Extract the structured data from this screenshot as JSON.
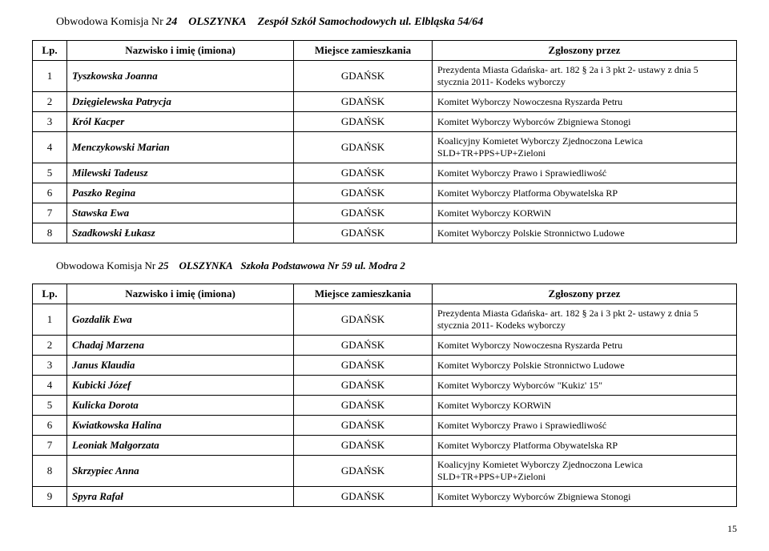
{
  "header1_prefix": "Obwodowa Komisja Nr ",
  "header1_num": "24",
  "header1_loc": "OLSZYNKA",
  "header1_place": "Zespół Szkół Samochodowych  ul. Elbląska 54/64",
  "header2_prefix": "Obwodowa Komisja Nr ",
  "header2_num": "25",
  "header2_loc": "OLSZYNKA",
  "header2_place": "Szkoła Podstawowa Nr 59   ul. Modra 2",
  "th_lp": "Lp.",
  "th_name": "Nazwisko i imię (imiona)",
  "th_loc": "Miejsce zamieszkania",
  "th_zgl": "Zgłoszony przez",
  "table1": {
    "rows": [
      {
        "lp": "1",
        "name": "Tyszkowska  Joanna",
        "loc": "GDAŃSK",
        "zgl": "Prezydenta Miasta Gdańska- art. 182 § 2a i 3 pkt 2- ustawy z dnia 5 stycznia 2011- Kodeks wyborczy"
      },
      {
        "lp": "2",
        "name": "Dzięgielewska  Patrycja",
        "loc": "GDAŃSK",
        "zgl": "Komitet Wyborczy Nowoczesna Ryszarda Petru"
      },
      {
        "lp": "3",
        "name": "Król  Kacper",
        "loc": "GDAŃSK",
        "zgl": "Komitet Wyborczy Wyborców Zbigniewa Stonogi"
      },
      {
        "lp": "4",
        "name": "Menczykowski  Marian",
        "loc": "GDAŃSK",
        "zgl": "Koalicyjny Komietet Wyborczy Zjednoczona Lewica SLD+TR+PPS+UP+Zieloni"
      },
      {
        "lp": "5",
        "name": "Milewski  Tadeusz",
        "loc": "GDAŃSK",
        "zgl": "Komitet Wyborczy Prawo i Sprawiedliwość"
      },
      {
        "lp": "6",
        "name": "Paszko   Regina",
        "loc": "GDAŃSK",
        "zgl": "Komitet Wyborczy Platforma Obywatelska RP"
      },
      {
        "lp": "7",
        "name": "Stawska  Ewa",
        "loc": "GDAŃSK",
        "zgl": "Komitet Wyborczy KORWiN"
      },
      {
        "lp": "8",
        "name": "Szadkowski   Łukasz",
        "loc": "GDAŃSK",
        "zgl": "Komitet Wyborczy Polskie Stronnictwo Ludowe"
      }
    ]
  },
  "table2": {
    "rows": [
      {
        "lp": "1",
        "name": "Gozdalik  Ewa",
        "loc": "GDAŃSK",
        "zgl": "Prezydenta Miasta Gdańska- art. 182 § 2a i 3 pkt 2- ustawy z dnia 5 stycznia 2011- Kodeks wyborczy"
      },
      {
        "lp": "2",
        "name": "Chadaj  Marzena",
        "loc": "GDAŃSK",
        "zgl": "Komitet Wyborczy Nowoczesna Ryszarda Petru"
      },
      {
        "lp": "3",
        "name": "Janus   Klaudia",
        "loc": "GDAŃSK",
        "zgl": "Komitet Wyborczy Polskie Stronnictwo Ludowe"
      },
      {
        "lp": "4",
        "name": "Kubicki  Józef",
        "loc": "GDAŃSK",
        "zgl": "Komitet Wyborczy Wyborców \"Kukiz' 15\""
      },
      {
        "lp": "5",
        "name": "Kulicka  Dorota",
        "loc": "GDAŃSK",
        "zgl": "Komitet Wyborczy KORWiN"
      },
      {
        "lp": "6",
        "name": "Kwiatkowska  Halina",
        "loc": "GDAŃSK",
        "zgl": "Komitet Wyborczy Prawo i Sprawiedliwość"
      },
      {
        "lp": "7",
        "name": "Leoniak  Małgorzata",
        "loc": "GDAŃSK",
        "zgl": "Komitet Wyborczy Platforma Obywatelska RP"
      },
      {
        "lp": "8",
        "name": "Skrzypiec  Anna",
        "loc": "GDAŃSK",
        "zgl": "Koalicyjny Komietet Wyborczy Zjednoczona Lewica SLD+TR+PPS+UP+Zieloni"
      },
      {
        "lp": "9",
        "name": "Spyra  Rafał",
        "loc": "GDAŃSK",
        "zgl": "Komitet Wyborczy Wyborców Zbigniewa Stonogi"
      }
    ]
  },
  "page_num": "15"
}
